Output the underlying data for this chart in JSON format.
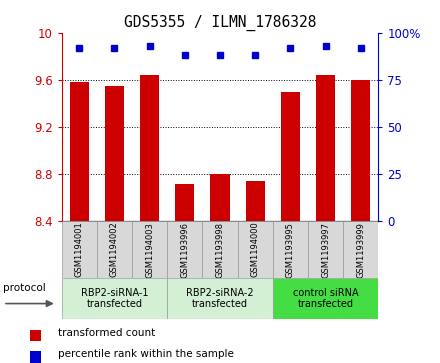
{
  "title": "GDS5355 / ILMN_1786328",
  "samples": [
    "GSM1194001",
    "GSM1194002",
    "GSM1194003",
    "GSM1193996",
    "GSM1193998",
    "GSM1194000",
    "GSM1193995",
    "GSM1193997",
    "GSM1193999"
  ],
  "red_values": [
    9.58,
    9.55,
    9.64,
    8.72,
    8.8,
    8.74,
    9.5,
    9.64,
    9.6
  ],
  "blue_values": [
    92,
    92,
    93,
    88,
    88,
    88,
    92,
    93,
    92
  ],
  "ylim_left": [
    8.4,
    10.0
  ],
  "ylim_right": [
    0,
    100
  ],
  "yticks_left": [
    8.4,
    8.8,
    9.2,
    9.6,
    10.0
  ],
  "yticks_right": [
    0,
    25,
    50,
    75,
    100
  ],
  "groups": [
    {
      "label": "RBP2-siRNA-1\ntransfected",
      "start": 0,
      "end": 3
    },
    {
      "label": "RBP2-siRNA-2\ntransfected",
      "start": 3,
      "end": 6
    },
    {
      "label": "control siRNA\ntransfected",
      "start": 6,
      "end": 9
    }
  ],
  "group_colors": [
    "#d4f0d4",
    "#d4f0d4",
    "#44dd44"
  ],
  "bar_color": "#cc0000",
  "dot_color": "#0000cc",
  "bg_color": "#d8d8d8",
  "legend_red_label": "transformed count",
  "legend_blue_label": "percentile rank within the sample",
  "protocol_label": "protocol"
}
